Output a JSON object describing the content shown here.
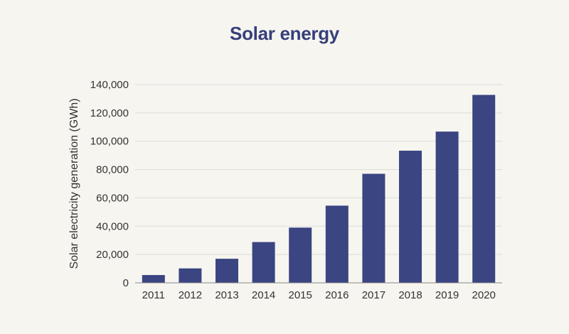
{
  "colors": {
    "background": "#f6f5f0",
    "bar": "#3a4581",
    "title": "#363f7a",
    "grid": "#dcdcd8",
    "axis": "#888888"
  },
  "chart_data": {
    "type": "bar",
    "title": "Solar energy",
    "xlabel": "",
    "ylabel": "Solar electricity generation (GWh)",
    "categories": [
      "2011",
      "2012",
      "2013",
      "2014",
      "2015",
      "2016",
      "2017",
      "2018",
      "2019",
      "2020"
    ],
    "values": [
      5500,
      10200,
      17000,
      28800,
      39000,
      54500,
      77000,
      93300,
      106800,
      132700
    ],
    "ylim": [
      0,
      140000
    ],
    "yticks": [
      0,
      20000,
      40000,
      60000,
      80000,
      100000,
      120000,
      140000
    ],
    "ytick_labels": [
      "0",
      "20,000",
      "40,000",
      "60,000",
      "80,000",
      "100,000",
      "120,000",
      "140,000"
    ],
    "grid": true,
    "legend": "none"
  }
}
